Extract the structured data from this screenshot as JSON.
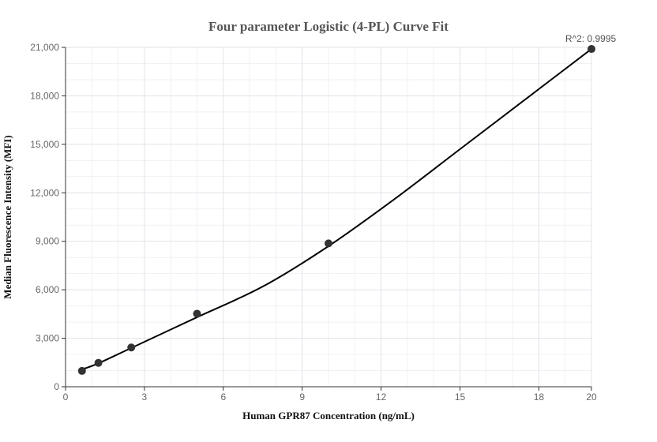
{
  "chart_data": {
    "type": "scatter",
    "title": "Four parameter Logistic (4-PL) Curve Fit",
    "xlabel": "Human GPR87 Concentration (ng/mL)",
    "ylabel": "Median Fluorescence Intensity (MFI)",
    "xlim": [
      0,
      20
    ],
    "ylim": [
      0,
      21000
    ],
    "xticks": [
      0,
      3,
      6,
      9,
      12,
      15,
      18,
      20
    ],
    "xtick_labels": [
      "0",
      "3",
      "6",
      "9",
      "12",
      "15",
      "18",
      "20"
    ],
    "yticks": [
      0,
      3000,
      6000,
      9000,
      12000,
      15000,
      18000,
      21000
    ],
    "ytick_labels": [
      "0",
      "3,000",
      "6,000",
      "9,000",
      "12,000",
      "15,000",
      "18,000",
      "21,000"
    ],
    "grid": true,
    "points": [
      {
        "x": 0.625,
        "y": 980
      },
      {
        "x": 1.25,
        "y": 1480
      },
      {
        "x": 2.5,
        "y": 2430
      },
      {
        "x": 5,
        "y": 4520
      },
      {
        "x": 10,
        "y": 8870
      },
      {
        "x": 20,
        "y": 20900
      }
    ],
    "fit_curve": {
      "model": "4PL",
      "points": [
        {
          "x": 0.625,
          "y": 1070
        },
        {
          "x": 1.25,
          "y": 1450
        },
        {
          "x": 2.5,
          "y": 2400
        },
        {
          "x": 5,
          "y": 4300
        },
        {
          "x": 7.5,
          "y": 6200
        },
        {
          "x": 10,
          "y": 8700
        },
        {
          "x": 12.5,
          "y": 11600
        },
        {
          "x": 15,
          "y": 14700
        },
        {
          "x": 17.5,
          "y": 17800
        },
        {
          "x": 20,
          "y": 20900
        }
      ]
    },
    "annotation": {
      "text": "R^2: 0.9995",
      "x": 20,
      "y": 20900
    }
  }
}
